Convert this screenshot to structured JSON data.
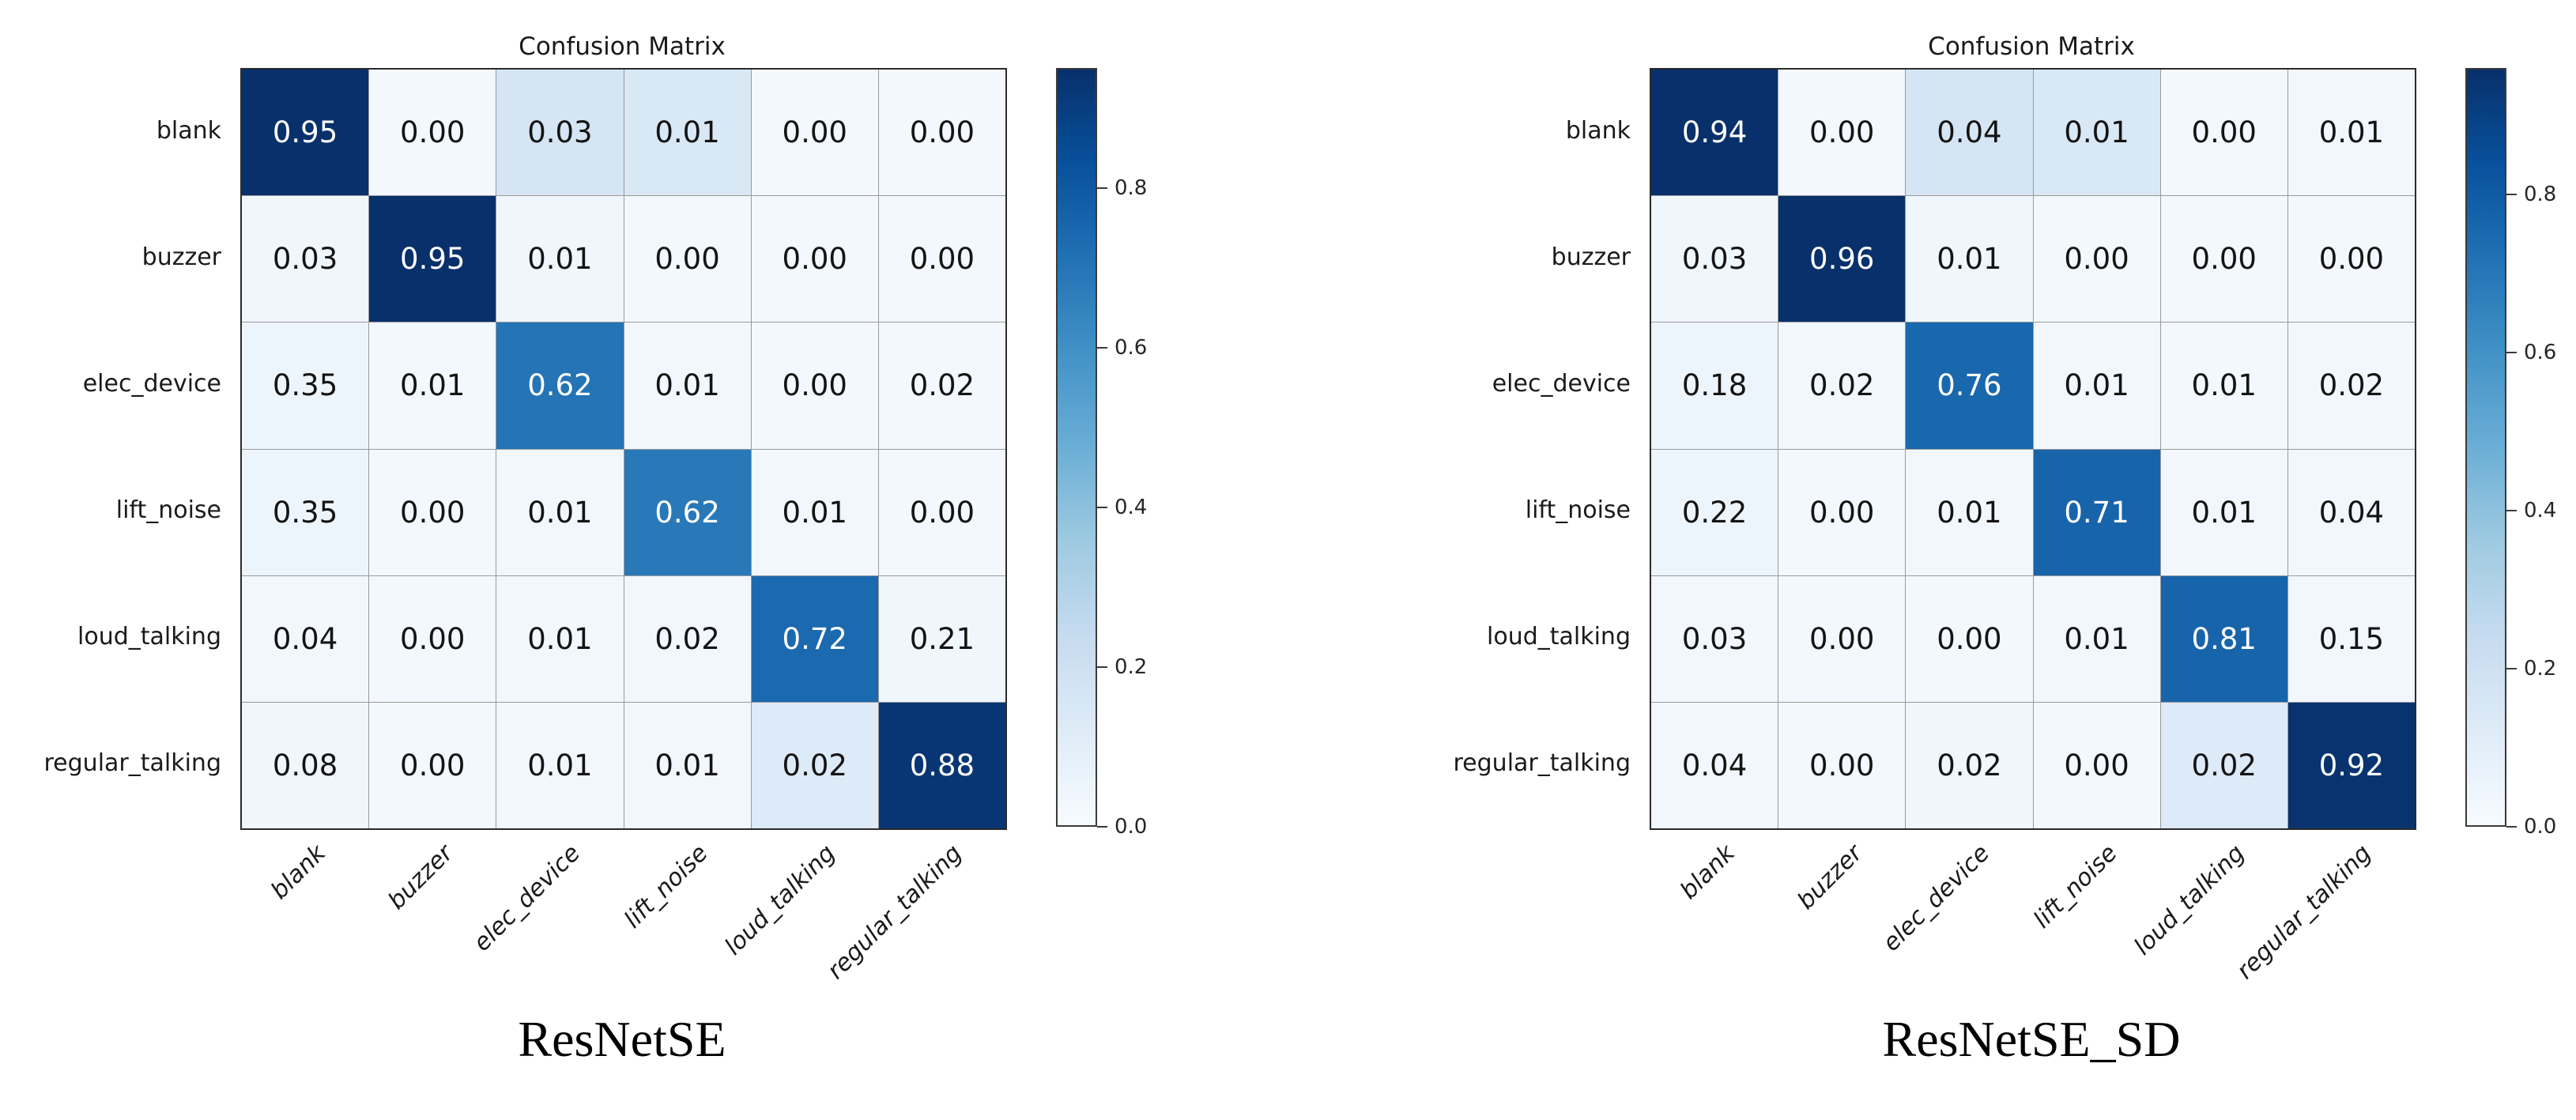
{
  "figure_background": "#ffffff",
  "chart_data": [
    {
      "type": "heatmap",
      "title": "Confusion Matrix",
      "caption": "ResNetSE",
      "x_categories": [
        "blank",
        "buzzer",
        "elec_device",
        "lift_noise",
        "loud_talking",
        "regular_talking"
      ],
      "y_categories": [
        "blank",
        "buzzer",
        "elec_device",
        "lift_noise",
        "loud_talking",
        "regular_talking"
      ],
      "matrix": [
        [
          0.95,
          0.0,
          0.03,
          0.01,
          0.0,
          0.0
        ],
        [
          0.03,
          0.95,
          0.01,
          0.0,
          0.0,
          0.0
        ],
        [
          0.35,
          0.01,
          0.62,
          0.01,
          0.0,
          0.02
        ],
        [
          0.35,
          0.0,
          0.01,
          0.62,
          0.01,
          0.0
        ],
        [
          0.04,
          0.0,
          0.01,
          0.02,
          0.72,
          0.21
        ],
        [
          0.08,
          0.0,
          0.01,
          0.01,
          0.02,
          0.88
        ]
      ],
      "cell_shading_0to1": [
        [
          1.0,
          0.02,
          0.17,
          0.15,
          0.02,
          0.02
        ],
        [
          0.04,
          1.0,
          0.04,
          0.02,
          0.02,
          0.02
        ],
        [
          0.05,
          0.02,
          0.74,
          0.03,
          0.02,
          0.02
        ],
        [
          0.05,
          0.02,
          0.03,
          0.72,
          0.03,
          0.02
        ],
        [
          0.03,
          0.02,
          0.03,
          0.03,
          0.78,
          0.04
        ],
        [
          0.04,
          0.02,
          0.03,
          0.03,
          0.13,
          0.98
        ]
      ],
      "vmin": 0.0,
      "vmax": 0.95,
      "value_format_decimals": 2,
      "colormap": "Blues",
      "colormap_stops": [
        "#f7fbff",
        "#deebf7",
        "#c6dbef",
        "#9ecae1",
        "#6baed6",
        "#4292c6",
        "#2171b5",
        "#08519c",
        "#08306b"
      ],
      "colorbar_ticks": [
        0.0,
        0.2,
        0.4,
        0.6,
        0.8
      ],
      "colorbar_tick_decimals": 1,
      "grid_line_color": "#9a9a9a",
      "border_color": "#2b2b2b",
      "text_color_dark": "#141414",
      "text_color_light": "#ffffff",
      "legend_position": "right-colorbar",
      "grid": true
    },
    {
      "type": "heatmap",
      "title": "Confusion Matrix",
      "caption": "ResNetSE_SD",
      "x_categories": [
        "blank",
        "buzzer",
        "elec_device",
        "lift_noise",
        "loud_talking",
        "regular_talking"
      ],
      "y_categories": [
        "blank",
        "buzzer",
        "elec_device",
        "lift_noise",
        "loud_talking",
        "regular_talking"
      ],
      "matrix": [
        [
          0.94,
          0.0,
          0.04,
          0.01,
          0.0,
          0.01
        ],
        [
          0.03,
          0.96,
          0.01,
          0.0,
          0.0,
          0.0
        ],
        [
          0.18,
          0.02,
          0.76,
          0.01,
          0.01,
          0.02
        ],
        [
          0.22,
          0.0,
          0.01,
          0.71,
          0.01,
          0.04
        ],
        [
          0.03,
          0.0,
          0.0,
          0.01,
          0.81,
          0.15
        ],
        [
          0.04,
          0.0,
          0.02,
          0.0,
          0.02,
          0.92
        ]
      ],
      "cell_shading_0to1": [
        [
          1.0,
          0.02,
          0.17,
          0.15,
          0.02,
          0.03
        ],
        [
          0.04,
          1.0,
          0.04,
          0.02,
          0.02,
          0.02
        ],
        [
          0.05,
          0.03,
          0.79,
          0.03,
          0.02,
          0.03
        ],
        [
          0.05,
          0.02,
          0.03,
          0.8,
          0.03,
          0.03
        ],
        [
          0.03,
          0.02,
          0.02,
          0.03,
          0.8,
          0.03
        ],
        [
          0.03,
          0.02,
          0.04,
          0.02,
          0.13,
          0.99
        ]
      ],
      "vmin": 0.0,
      "vmax": 0.96,
      "value_format_decimals": 2,
      "colormap": "Blues",
      "colormap_stops": [
        "#f7fbff",
        "#deebf7",
        "#c6dbef",
        "#9ecae1",
        "#6baed6",
        "#4292c6",
        "#2171b5",
        "#08519c",
        "#08306b"
      ],
      "colorbar_ticks": [
        0.0,
        0.2,
        0.4,
        0.6,
        0.8
      ],
      "colorbar_tick_decimals": 1,
      "grid_line_color": "#9a9a9a",
      "border_color": "#2b2b2b",
      "text_color_dark": "#141414",
      "text_color_light": "#ffffff",
      "legend_position": "right-colorbar",
      "grid": true
    }
  ]
}
